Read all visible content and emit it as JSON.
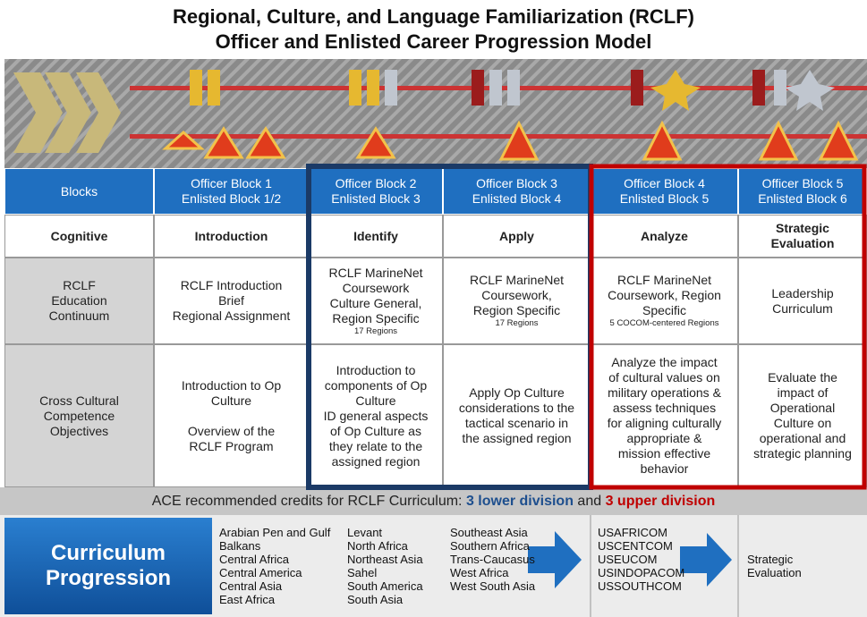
{
  "header": {
    "title": [
      "Regional, Culture, and  Language Familiarization (RCLF)",
      "Officer and Enlisted Career Progression Model"
    ]
  },
  "table": {
    "rows": [
      [
        {
          "text": [
            [
              "Blocks"
            ]
          ]
        },
        {
          "text": [
            [
              "Officer Block 1",
              "Enlisted Block 1/2"
            ]
          ]
        },
        {
          "text": [
            [
              "Officer Block 2",
              "Enlisted Block 3"
            ]
          ]
        },
        {
          "text": [
            [
              "Officer Block 3",
              "Enlisted Block 4"
            ]
          ]
        },
        {
          "text": [
            [
              "Officer Block 4",
              "Enlisted Block 5"
            ]
          ]
        },
        {
          "text": [
            [
              "Officer Block 5",
              "Enlisted Block 6"
            ]
          ]
        }
      ],
      [
        {
          "text": [
            [
              "Cognitive"
            ]
          ]
        },
        {
          "text": [
            [
              "Introduction"
            ]
          ]
        },
        {
          "text": [
            [
              "Identify"
            ]
          ]
        },
        {
          "text": [
            [
              "Apply"
            ]
          ]
        },
        {
          "text": [
            [
              "Analyze"
            ]
          ]
        },
        {
          "text": [
            [
              "Strategic",
              "Evaluation"
            ]
          ]
        }
      ],
      [
        {
          "text": [
            [
              "RCLF",
              "Education",
              "Continuum"
            ]
          ]
        },
        {
          "text": [
            [
              "RCLF Introduction",
              "Brief",
              "Regional Assignment"
            ]
          ]
        },
        {
          "text": [
            [
              "RCLF MarineNet",
              "Coursework",
              "Culture General,",
              "Region Specific"
            ]
          ],
          "note": "17 Regions"
        },
        {
          "text": [
            [
              "RCLF MarineNet",
              "Coursework,",
              "Region Specific"
            ]
          ],
          "note": "17 Regions"
        },
        {
          "text": [
            [
              "RCLF MarineNet",
              "Coursework, Region",
              "Specific"
            ]
          ],
          "note": "5 COCOM-centered Regions"
        },
        {
          "text": [
            [
              "Leadership",
              "Curriculum"
            ]
          ]
        }
      ],
      [
        {
          "text": [
            [
              "Cross Cultural",
              "Competence",
              "Objectives"
            ]
          ]
        },
        {
          "text": [
            [
              "Introduction to Op",
              "Culture"
            ],
            [
              "Overview of the",
              "RCLF Program"
            ]
          ]
        },
        {
          "text": [
            [
              "Introduction to",
              "components of Op",
              "Culture",
              "ID general aspects",
              "of Op Culture as",
              "they relate to the",
              "assigned region"
            ]
          ]
        },
        {
          "text": [
            [
              "Apply Op Culture",
              "considerations to the",
              "tactical scenario in",
              "the assigned region"
            ]
          ]
        },
        {
          "text": [
            [
              "Analyze the impact",
              "of cultural values on",
              "military operations &",
              "assess techniques",
              "for aligning culturally",
              "appropriate &",
              "mission effective",
              "behavior"
            ]
          ]
        },
        {
          "text": [
            [
              "Evaluate the",
              "impact of",
              "Operational",
              "Culture on",
              "operational and",
              "strategic planning"
            ]
          ]
        }
      ]
    ]
  },
  "credits": {
    "text": "ACE recommended credits for RCLF Curriculum:",
    "lower": "3 lower division",
    "and": "and",
    "upper": "3 upper division"
  },
  "curriculum": {
    "title": [
      "Curriculum",
      "Progression"
    ],
    "columns": [
      [
        "Arabian Pen and Gulf",
        "Balkans",
        "Central Africa",
        "Central America",
        "Central Asia",
        "East Africa"
      ],
      [
        "Levant",
        "North Africa",
        "Northeast Asia",
        "Sahel",
        "South America",
        "South Asia"
      ],
      [
        "Southeast Asia",
        "Southern Africa",
        "Trans-Caucasus",
        "West Africa",
        "West South Asia"
      ],
      [
        "USAFRICOM",
        "USCENTCOM",
        "USEUCOM",
        "USINDOPACOM",
        "USSOUTHCOM"
      ],
      [
        "Strategic",
        "Evaluation"
      ]
    ]
  }
}
